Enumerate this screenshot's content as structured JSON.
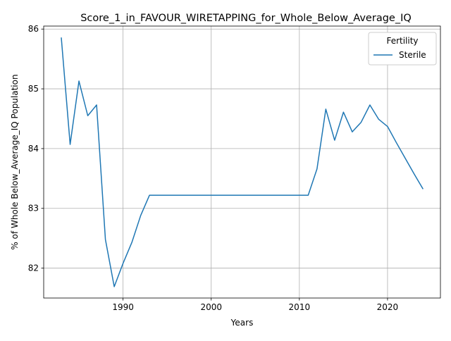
{
  "chart_data": {
    "type": "line",
    "title": "Score_1_in_FAVOUR_WIRETAPPING_for_Whole_Below_Average_IQ",
    "xlabel": "Years",
    "ylabel": "% of Whole Below_Average_IQ Population",
    "xlim": [
      1981,
      2026
    ],
    "ylim": [
      81.5,
      86.05
    ],
    "xticks": [
      1990,
      2000,
      2010,
      2020
    ],
    "yticks": [
      82,
      83,
      84,
      85,
      86
    ],
    "grid": true,
    "legend": {
      "title": "Fertility",
      "position": "top-right"
    },
    "series": [
      {
        "name": "Sterile",
        "color": "#1f77b4",
        "x": [
          1983,
          1984,
          1985,
          1986,
          1987,
          1988,
          1989,
          1990,
          1991,
          1992,
          1993,
          1994,
          1995,
          1996,
          1997,
          1998,
          1999,
          2000,
          2001,
          2002,
          2003,
          2004,
          2005,
          2006,
          2007,
          2008,
          2009,
          2010,
          2011,
          2012,
          2013,
          2014,
          2015,
          2016,
          2017,
          2018,
          2019,
          2020,
          2021,
          2022,
          2023,
          2024
        ],
        "y": [
          85.85,
          84.07,
          85.13,
          84.55,
          84.73,
          82.48,
          81.69,
          82.08,
          82.43,
          82.88,
          83.22,
          83.22,
          83.22,
          83.22,
          83.22,
          83.22,
          83.22,
          83.22,
          83.22,
          83.22,
          83.22,
          83.22,
          83.22,
          83.22,
          83.22,
          83.22,
          83.22,
          83.22,
          83.22,
          83.66,
          84.66,
          84.14,
          84.61,
          84.28,
          84.44,
          84.73,
          84.49,
          84.37,
          84.1,
          83.84,
          83.58,
          83.33
        ]
      }
    ]
  }
}
